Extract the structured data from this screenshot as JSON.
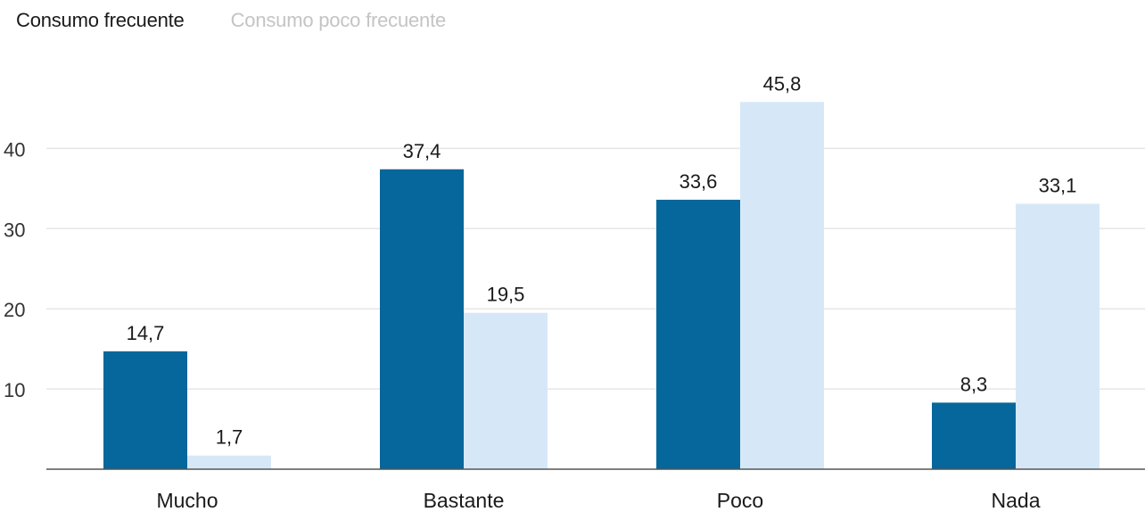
{
  "legend": {
    "items": [
      {
        "label": "Consumo frecuente",
        "color": "#1a1a1a",
        "active": true
      },
      {
        "label": "Consumo poco frecuente",
        "color": "#c4c4c4",
        "active": false
      }
    ]
  },
  "chart_data": {
    "type": "bar",
    "title": "",
    "xlabel": "",
    "ylabel": "",
    "categories": [
      "Mucho",
      "Bastante",
      "Poco",
      "Nada"
    ],
    "series": [
      {
        "name": "Consumo frecuente",
        "color": "#05679b",
        "values": [
          14.7,
          37.4,
          33.6,
          8.3
        ],
        "labels": [
          "14,7",
          "37,4",
          "33,6",
          "8,3"
        ]
      },
      {
        "name": "Consumo poco frecuente",
        "color": "#d6e8f8",
        "values": [
          1.7,
          19.5,
          45.8,
          33.1
        ],
        "labels": [
          "1,7",
          "19,5",
          "45,8",
          "33,1"
        ]
      }
    ],
    "yticks": [
      10,
      20,
      30,
      40
    ],
    "ytick_labels": [
      "10",
      "20",
      "30",
      "40"
    ],
    "ylim": [
      0,
      50
    ],
    "grid": true,
    "legend_position": "top-left"
  }
}
